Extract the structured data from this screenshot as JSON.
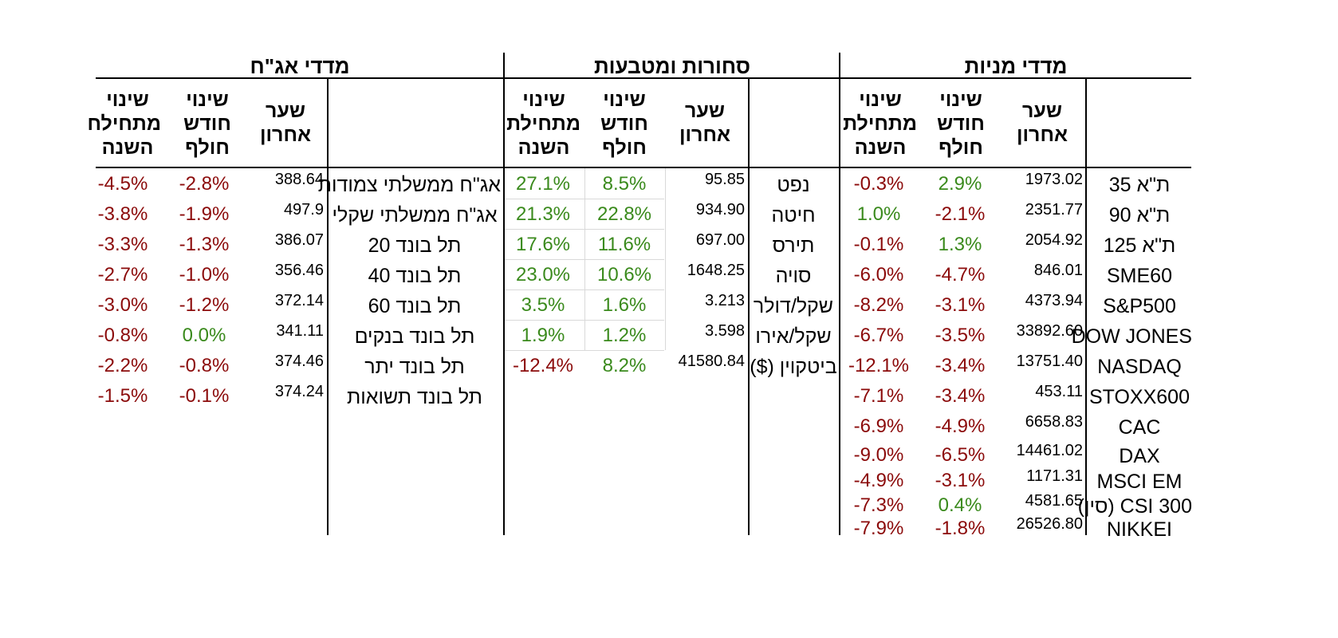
{
  "sections": {
    "bonds": "מדדי אג\"ח",
    "commodities": "סחורות ומטבעות",
    "equities": "מדדי מניות"
  },
  "headers": {
    "last_price": [
      "שער",
      "אחרון"
    ],
    "month_change": [
      "שינוי",
      "חודש",
      "חולף"
    ],
    "ytd_change": [
      "שינוי",
      "מתחילת",
      "השנה"
    ],
    "ytd_change_clipped": [
      "שינוי",
      "מתחילח",
      "השנה"
    ]
  },
  "colors": {
    "negative": "#8b0a0a",
    "positive": "#3a8a1c"
  },
  "bonds": [
    {
      "name": "אג\"ח ממשלתי צמודות",
      "price": "388.64",
      "month": "-2.8%",
      "ytd": "-4.5%"
    },
    {
      "name": "אג\"ח ממשלתי שקלי",
      "price": "497.9",
      "month": "-1.9%",
      "ytd": "-3.8%"
    },
    {
      "name": "תל בונד 20",
      "price": "386.07",
      "month": "-1.3%",
      "ytd": "-3.3%"
    },
    {
      "name": "תל בונד 40",
      "price": "356.46",
      "month": "-1.0%",
      "ytd": "-2.7%"
    },
    {
      "name": "תל בונד 60",
      "price": "372.14",
      "month": "-1.2%",
      "ytd": "-3.0%"
    },
    {
      "name": "תל בונד בנקים",
      "price": "341.11",
      "month": "0.0%",
      "ytd": "-0.8%"
    },
    {
      "name": "תל בונד יתר",
      "price": "374.46",
      "month": "-0.8%",
      "ytd": "-2.2%"
    },
    {
      "name": "תל בונד תשואות",
      "price": "374.24",
      "month": "-0.1%",
      "ytd": "-1.5%"
    }
  ],
  "commodities": [
    {
      "name": "נפט",
      "price": "95.85",
      "month": "8.5%",
      "ytd": "27.1%"
    },
    {
      "name": "חיטה",
      "price": "934.90",
      "month": "22.8%",
      "ytd": "21.3%"
    },
    {
      "name": "תירס",
      "price": "697.00",
      "month": "11.6%",
      "ytd": "17.6%"
    },
    {
      "name": "סויה",
      "price": "1648.25",
      "month": "10.6%",
      "ytd": "23.0%"
    },
    {
      "name": "שקל/דולר",
      "price": "3.213",
      "month": "1.6%",
      "ytd": "3.5%"
    },
    {
      "name": "שקל/אירו",
      "price": "3.598",
      "month": "1.2%",
      "ytd": "1.9%"
    },
    {
      "name": "ביטקוין ($)",
      "price": "41580.84",
      "month": "8.2%",
      "ytd": "-12.4%"
    }
  ],
  "equities": [
    {
      "name": "ת\"א 35",
      "price": "1973.02",
      "month": "2.9%",
      "ytd": "-0.3%"
    },
    {
      "name": "ת\"א 90",
      "price": "2351.77",
      "month": "-2.1%",
      "ytd": "1.0%"
    },
    {
      "name": "ת\"א 125",
      "price": "2054.92",
      "month": "1.3%",
      "ytd": "-0.1%"
    },
    {
      "name": "SME60",
      "price": "846.01",
      "month": "-4.7%",
      "ytd": "-6.0%"
    },
    {
      "name": "S&P500",
      "price": "4373.94",
      "month": "-3.1%",
      "ytd": "-8.2%"
    },
    {
      "name": "DOW JONES",
      "price": "33892.60",
      "month": "-3.5%",
      "ytd": "-6.7%"
    },
    {
      "name": "NASDAQ",
      "price": "13751.40",
      "month": "-3.4%",
      "ytd": "-12.1%"
    },
    {
      "name": "STOXX600",
      "price": "453.11",
      "month": "-3.4%",
      "ytd": "-7.1%"
    },
    {
      "name": "CAC",
      "price": "6658.83",
      "month": "-4.9%",
      "ytd": "-6.9%"
    },
    {
      "name": "DAX",
      "price": "14461.02",
      "month": "-6.5%",
      "ytd": "-9.0%"
    },
    {
      "name": "MSCI EM",
      "price": "1171.31",
      "month": "-3.1%",
      "ytd": "-4.9%"
    },
    {
      "name": "CSI 300 (סין)",
      "price": "4581.65",
      "month": "0.4%",
      "ytd": "-7.3%"
    },
    {
      "name": "NIKKEI",
      "price": "26526.80",
      "month": "-1.8%",
      "ytd": "-7.9%"
    }
  ]
}
